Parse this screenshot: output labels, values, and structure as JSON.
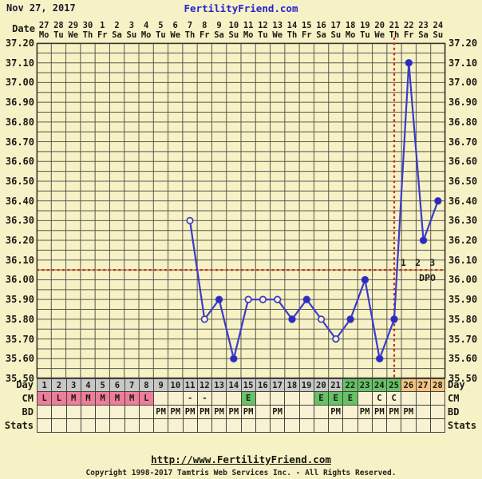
{
  "header": {
    "date_label": "Nov 27, 2017",
    "site_name": "FertilityFriend.com"
  },
  "axis": {
    "date_row_label": "Date",
    "dates": [
      "27",
      "28",
      "29",
      "30",
      "1",
      "2",
      "3",
      "4",
      "5",
      "6",
      "7",
      "8",
      "9",
      "10",
      "11",
      "12",
      "13",
      "14",
      "15",
      "16",
      "17",
      "18",
      "19",
      "20",
      "21",
      "22",
      "23",
      "24"
    ],
    "weekdays": [
      "Mo",
      "Tu",
      "We",
      "Th",
      "Fr",
      "Sa",
      "Su",
      "Mo",
      "Tu",
      "We",
      "Th",
      "Fr",
      "Sa",
      "Su",
      "Mo",
      "Tu",
      "We",
      "Th",
      "Fr",
      "Sa",
      "Su",
      "Mo",
      "Tu",
      "We",
      "Th",
      "Fr",
      "Sa",
      "Su"
    ],
    "y_labels": [
      "37.20",
      "37.10",
      "37.00",
      "36.90",
      "36.80",
      "36.70",
      "36.60",
      "36.50",
      "36.40",
      "36.30",
      "36.20",
      "36.10",
      "36.00",
      "35.90",
      "35.80",
      "35.70",
      "35.60",
      "35.50"
    ]
  },
  "chart_data": {
    "type": "line",
    "title": "Basal body temperature chart",
    "ylim": [
      35.5,
      37.2
    ],
    "y_step": 0.1,
    "x_days": 28,
    "grid": true,
    "series": [
      {
        "name": "BBT",
        "points": [
          {
            "day": 11,
            "temp": 36.3,
            "open": true
          },
          {
            "day": 12,
            "temp": 35.8,
            "open": true
          },
          {
            "day": 13,
            "temp": 35.9,
            "open": false
          },
          {
            "day": 14,
            "temp": 35.6,
            "open": false
          },
          {
            "day": 15,
            "temp": 35.9,
            "open": true
          },
          {
            "day": 16,
            "temp": 35.9,
            "open": true
          },
          {
            "day": 17,
            "temp": 35.9,
            "open": true
          },
          {
            "day": 18,
            "temp": 35.8,
            "open": false
          },
          {
            "day": 19,
            "temp": 35.9,
            "open": false
          },
          {
            "day": 20,
            "temp": 35.8,
            "open": true
          },
          {
            "day": 21,
            "temp": 35.7,
            "open": true
          },
          {
            "day": 22,
            "temp": 35.8,
            "open": false
          },
          {
            "day": 23,
            "temp": 36.0,
            "open": false
          },
          {
            "day": 24,
            "temp": 35.6,
            "open": false
          },
          {
            "day": 25,
            "temp": 35.8,
            "open": false
          },
          {
            "day": 26,
            "temp": 37.1,
            "open": false
          },
          {
            "day": 27,
            "temp": 36.2,
            "open": false
          },
          {
            "day": 28,
            "temp": 36.4,
            "open": false
          }
        ]
      }
    ],
    "coverline": 36.05,
    "ovulation_day": 25,
    "dpo_labels": [
      {
        "day": 26,
        "label": "1"
      },
      {
        "day": 27,
        "label": "2"
      },
      {
        "day": 28,
        "label": "3"
      }
    ],
    "dpo_caption": "DPO"
  },
  "table": {
    "rows": [
      {
        "label": "Day",
        "cells": [
          "1",
          "2",
          "3",
          "4",
          "5",
          "6",
          "7",
          "8",
          "9",
          "10",
          "11",
          "12",
          "13",
          "14",
          "15",
          "16",
          "17",
          "18",
          "19",
          "20",
          "21",
          "22",
          "23",
          "24",
          "25",
          "26",
          "27",
          "28"
        ],
        "cell_colors": [
          "gray",
          "gray",
          "gray",
          "gray",
          "gray",
          "gray",
          "gray",
          "gray",
          "gray",
          "gray",
          "gray",
          "gray",
          "gray",
          "gray",
          "gray",
          "gray",
          "gray",
          "gray",
          "gray",
          "gray",
          "gray",
          "green",
          "green",
          "green",
          "green",
          "orange",
          "orange",
          "orange"
        ]
      },
      {
        "label": "CM",
        "cells": [
          "L",
          "L",
          "M",
          "M",
          "M",
          "M",
          "M",
          "L",
          "",
          "",
          "-",
          "-",
          "",
          "",
          "E",
          "",
          "",
          "",
          "",
          "E",
          "E",
          "E",
          "",
          "C",
          "C",
          "",
          "",
          ""
        ],
        "cell_colors": [
          "pink",
          "pink",
          "pink",
          "pink",
          "pink",
          "pink",
          "pink",
          "pink",
          "cream",
          "cream",
          "cream",
          "cream",
          "cream",
          "cream",
          "green",
          "cream",
          "cream",
          "cream",
          "cream",
          "green",
          "green",
          "green",
          "cream",
          "cream",
          "cream",
          "cream",
          "cream",
          "cream"
        ]
      },
      {
        "label": "BD",
        "cells": [
          "",
          "",
          "",
          "",
          "",
          "",
          "",
          "",
          "PM",
          "PM",
          "PM",
          "PM",
          "PM",
          "PM",
          "PM",
          "",
          "PM",
          "",
          "",
          "",
          "PM",
          "",
          "PM",
          "PM",
          "PM",
          "PM",
          "",
          ""
        ],
        "cell_colors": [
          "cream",
          "cream",
          "cream",
          "cream",
          "cream",
          "cream",
          "cream",
          "cream",
          "cream",
          "cream",
          "cream",
          "cream",
          "cream",
          "cream",
          "cream",
          "cream",
          "cream",
          "cream",
          "cream",
          "cream",
          "cream",
          "cream",
          "cream",
          "cream",
          "cream",
          "cream",
          "cream",
          "cream"
        ]
      },
      {
        "label": "Stats",
        "cells": [
          "",
          "",
          "",
          "",
          "",
          "",
          "",
          "",
          "",
          "",
          "",
          "",
          "",
          "",
          "",
          "",
          "",
          "",
          "",
          "",
          "",
          "",
          "",
          "",
          "",
          "",
          "",
          ""
        ],
        "cell_colors": [
          "cream",
          "cream",
          "cream",
          "cream",
          "cream",
          "cream",
          "cream",
          "cream",
          "cream",
          "cream",
          "cream",
          "cream",
          "cream",
          "cream",
          "cream",
          "cream",
          "cream",
          "cream",
          "cream",
          "cream",
          "cream",
          "cream",
          "cream",
          "cream",
          "cream",
          "cream",
          "cream",
          "cream"
        ]
      }
    ]
  },
  "footer": {
    "url": "http://www.FertilityFriend.com",
    "copyright": "Copyright 1998-2017 Tamtris Web Services Inc. - All Rights Reserved."
  },
  "colors": {
    "page_bg": "#F7F1C6",
    "grid": "#59594C",
    "line_blue": "#3B3BCB",
    "point_fill": "#2B2BC0",
    "red_dash": "#C5301C",
    "site_blue": "#2424CE",
    "title_navy": "#1B1B35",
    "dpo_text": "#20201A",
    "cell_gray": "#C8C8C8",
    "cell_green": "#67C267",
    "cell_orange": "#F3C380",
    "cell_pink": "#EE7D9B",
    "cell_cream": "#F8F2D2"
  }
}
